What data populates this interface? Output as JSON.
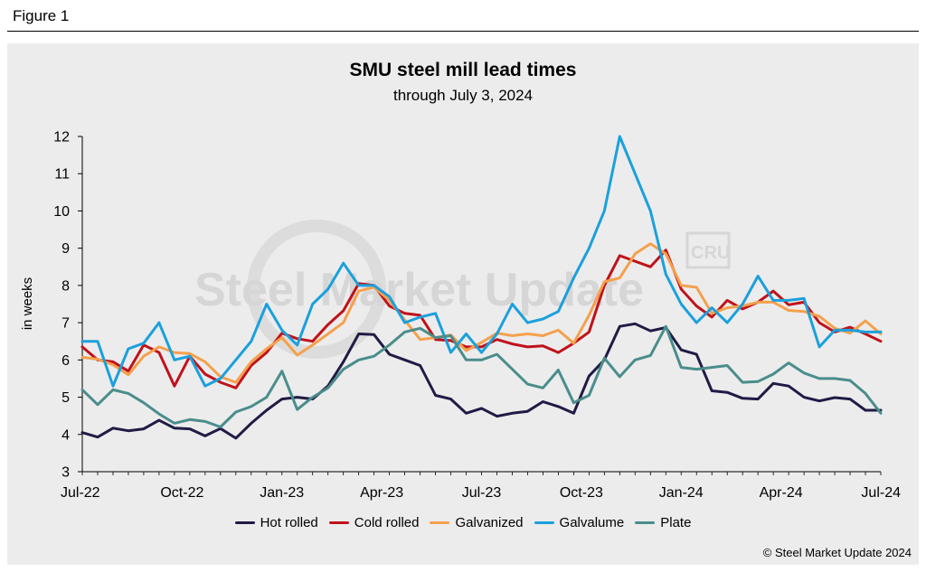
{
  "figure_label": "Figure 1",
  "copyright": "© Steel Market Update 2024",
  "watermark": "Steel Market Update",
  "watermark_logo": "CRU",
  "chart_data": {
    "type": "line",
    "title": "SMU steel mill lead times",
    "subtitle": "through July 3, 2024",
    "ylabel": "in weeks",
    "xlabel": "",
    "ylim": [
      3,
      12
    ],
    "yticks": [
      3,
      4,
      5,
      6,
      7,
      8,
      9,
      10,
      11,
      12
    ],
    "xtick_labels": [
      "Jul-22",
      "Oct-22",
      "Jan-23",
      "Apr-23",
      "Jul-23",
      "Oct-23",
      "Jan-24",
      "Apr-24",
      "Jul-24"
    ],
    "x": [
      "2022-07-06",
      "2022-07-20",
      "2022-08-03",
      "2022-08-17",
      "2022-08-31",
      "2022-09-14",
      "2022-09-28",
      "2022-10-12",
      "2022-10-26",
      "2022-11-09",
      "2022-11-23",
      "2022-12-07",
      "2022-12-21",
      "2023-01-04",
      "2023-01-18",
      "2023-02-01",
      "2023-02-15",
      "2023-03-01",
      "2023-03-15",
      "2023-03-29",
      "2023-04-12",
      "2023-04-26",
      "2023-05-10",
      "2023-05-24",
      "2023-06-07",
      "2023-06-21",
      "2023-07-05",
      "2023-07-19",
      "2023-08-02",
      "2023-08-16",
      "2023-08-30",
      "2023-09-13",
      "2023-09-27",
      "2023-10-11",
      "2023-10-25",
      "2023-11-08",
      "2023-11-22",
      "2023-12-06",
      "2023-12-20",
      "2024-01-03",
      "2024-01-17",
      "2024-01-31",
      "2024-02-14",
      "2024-02-28",
      "2024-03-13",
      "2024-03-27",
      "2024-04-10",
      "2024-04-24",
      "2024-05-08",
      "2024-05-22",
      "2024-06-05",
      "2024-06-19",
      "2024-07-03"
    ],
    "grid": false,
    "legend_position": "bottom",
    "series": [
      {
        "name": "Hot rolled",
        "color": "#1f1b45",
        "values": [
          4.05,
          3.93,
          4.17,
          4.1,
          4.15,
          4.38,
          4.17,
          4.15,
          3.96,
          4.16,
          3.9,
          4.3,
          4.65,
          4.95,
          5.0,
          4.95,
          5.3,
          5.95,
          6.7,
          6.68,
          6.15,
          6.0,
          5.85,
          5.05,
          4.95,
          4.57,
          4.7,
          4.49,
          4.57,
          4.62,
          4.88,
          4.75,
          4.57,
          5.57,
          6.0,
          6.9,
          6.97,
          6.78,
          6.87,
          6.27,
          6.15,
          5.17,
          5.13,
          4.97,
          4.95,
          5.37,
          5.3,
          5.0,
          4.9,
          4.99,
          4.95,
          4.65,
          4.65
        ]
      },
      {
        "name": "Cold rolled",
        "color": "#c0121a",
        "values": [
          6.35,
          6.0,
          5.95,
          5.7,
          6.4,
          6.2,
          5.3,
          6.1,
          5.62,
          5.4,
          5.25,
          5.85,
          6.2,
          6.72,
          6.57,
          6.5,
          6.95,
          7.32,
          8.05,
          8.0,
          7.45,
          7.25,
          7.2,
          6.55,
          6.52,
          6.35,
          6.35,
          6.55,
          6.43,
          6.35,
          6.38,
          6.2,
          6.45,
          6.75,
          8.0,
          8.8,
          8.65,
          8.5,
          8.95,
          7.9,
          7.45,
          7.15,
          7.6,
          7.37,
          7.55,
          7.85,
          7.48,
          7.55,
          7.0,
          6.75,
          6.88,
          6.7,
          6.5
        ]
      },
      {
        "name": "Galvanized",
        "color": "#f5a04d",
        "values": [
          6.07,
          6.02,
          5.87,
          5.6,
          6.1,
          6.35,
          6.2,
          6.17,
          5.95,
          5.55,
          5.4,
          5.95,
          6.3,
          6.6,
          6.13,
          6.4,
          6.7,
          7.0,
          7.85,
          7.95,
          7.6,
          7.07,
          6.55,
          6.6,
          6.67,
          6.25,
          6.47,
          6.72,
          6.65,
          6.7,
          6.65,
          6.8,
          6.45,
          7.2,
          8.1,
          8.2,
          8.85,
          9.12,
          8.85,
          8.0,
          7.95,
          7.25,
          7.4,
          7.45,
          7.55,
          7.55,
          7.33,
          7.3,
          7.17,
          6.85,
          6.72,
          7.05,
          6.7
        ]
      },
      {
        "name": "Galvalume",
        "color": "#1ba0dc",
        "values": [
          6.5,
          6.5,
          5.3,
          6.3,
          6.45,
          7.0,
          6.0,
          6.1,
          5.3,
          5.5,
          6.0,
          6.5,
          7.5,
          6.8,
          6.4,
          7.5,
          7.9,
          8.6,
          8.0,
          8.0,
          7.7,
          7.0,
          7.15,
          7.25,
          6.2,
          6.7,
          6.2,
          6.7,
          7.5,
          7.0,
          7.1,
          7.3,
          8.2,
          9.0,
          10.0,
          12.0,
          11.0,
          10.0,
          8.3,
          7.5,
          7.0,
          7.4,
          7.0,
          7.5,
          8.25,
          7.6,
          7.6,
          7.65,
          6.35,
          6.8,
          6.8,
          6.75,
          6.75
        ]
      },
      {
        "name": "Plate",
        "color": "#4a8d8b",
        "values": [
          5.2,
          4.8,
          5.2,
          5.1,
          4.85,
          4.55,
          4.3,
          4.4,
          4.35,
          4.2,
          4.6,
          4.75,
          5.0,
          5.7,
          4.67,
          5.0,
          5.25,
          5.75,
          6.0,
          6.1,
          6.4,
          6.75,
          6.85,
          6.6,
          6.65,
          6.0,
          6.0,
          6.15,
          5.75,
          5.35,
          5.25,
          5.73,
          4.85,
          5.05,
          6.05,
          5.55,
          6.0,
          6.12,
          6.9,
          5.8,
          5.75,
          5.8,
          5.85,
          5.4,
          5.42,
          5.62,
          5.92,
          5.65,
          5.5,
          5.5,
          5.45,
          5.1,
          4.57
        ]
      }
    ]
  }
}
